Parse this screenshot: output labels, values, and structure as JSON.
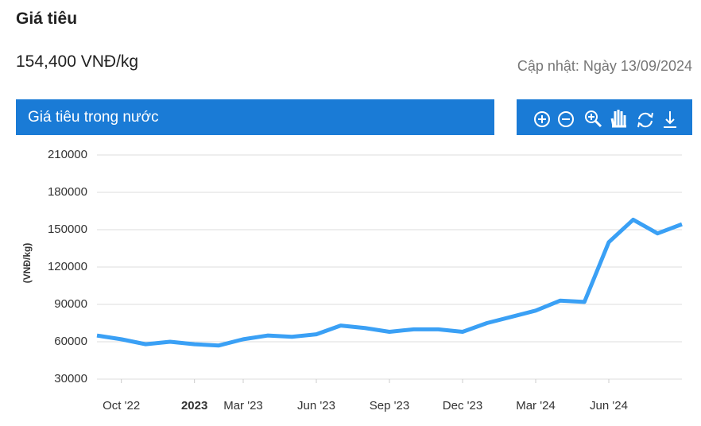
{
  "header": {
    "title": "Giá tiêu",
    "price": "154,400 VNĐ/kg",
    "updated": "Cập nhật: Ngày 13/09/2024",
    "section": "Giá tiêu trong nước"
  },
  "chart_data": {
    "type": "line",
    "y_label": "(VNĐ/kg)",
    "x": [
      "2022-09",
      "2022-10",
      "2022-11",
      "2022-12",
      "2023-01",
      "2023-02",
      "2023-03",
      "2023-04",
      "2023-05",
      "2023-06",
      "2023-07",
      "2023-08",
      "2023-09",
      "2023-10",
      "2023-11",
      "2023-12",
      "2024-01",
      "2024-02",
      "2024-03",
      "2024-04",
      "2024-05",
      "2024-06",
      "2024-07",
      "2024-08",
      "2024-09"
    ],
    "series": [
      {
        "name": "Giá tiêu trong nước",
        "color": "#3aa0f5",
        "values": [
          65000,
          62000,
          58000,
          60000,
          58000,
          57000,
          62000,
          65000,
          64000,
          66000,
          73000,
          71000,
          68000,
          70000,
          70000,
          68000,
          75000,
          80000,
          85000,
          93000,
          92000,
          140000,
          158000,
          147000,
          154400
        ]
      }
    ],
    "xlim": [
      "2022-09",
      "2024-09"
    ],
    "xticks": [
      {
        "value": "2022-10",
        "label": "Oct '22"
      },
      {
        "value": "2023-01",
        "label": "2023"
      },
      {
        "value": "2023-03",
        "label": "Mar '23"
      },
      {
        "value": "2023-06",
        "label": "Jun '23"
      },
      {
        "value": "2023-09",
        "label": "Sep '23"
      },
      {
        "value": "2023-12",
        "label": "Dec '23"
      },
      {
        "value": "2024-03",
        "label": "Mar '24"
      },
      {
        "value": "2024-06",
        "label": "Jun '24"
      }
    ],
    "ylim": [
      30000,
      210000
    ],
    "yticks": [
      30000,
      60000,
      90000,
      120000,
      150000,
      180000,
      210000
    ],
    "grid": true
  }
}
